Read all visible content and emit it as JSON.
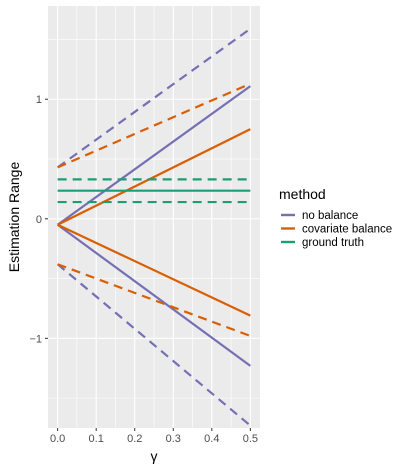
{
  "chart_data": {
    "type": "line",
    "xlabel": "γ",
    "ylabel": "Estimation Range",
    "xlim": [
      -0.025,
      0.525
    ],
    "ylim": [
      -1.75,
      1.78
    ],
    "x_ticks": [
      0.0,
      0.1,
      0.2,
      0.3,
      0.4,
      0.5
    ],
    "x_tick_labels": [
      "0.0",
      "0.1",
      "0.2",
      "0.3",
      "0.4",
      "0.5"
    ],
    "y_ticks": [
      -1,
      0,
      1
    ],
    "y_tick_labels": [
      "−1",
      "0",
      "1"
    ],
    "grid": true,
    "legend_position": "right",
    "legend_title": "method",
    "series": [
      {
        "name": "no balance",
        "color": "#7570b3",
        "style": "solid",
        "x": [
          0.0,
          0.5
        ],
        "y": [
          -0.05,
          1.11
        ]
      },
      {
        "name": "no balance",
        "color": "#7570b3",
        "style": "solid",
        "x": [
          0.0,
          0.5
        ],
        "y": [
          -0.05,
          -1.23
        ]
      },
      {
        "name": "no balance",
        "color": "#7570b3",
        "style": "dashed",
        "x": [
          0.0,
          0.5
        ],
        "y": [
          0.43,
          1.59
        ]
      },
      {
        "name": "no balance",
        "color": "#7570b3",
        "style": "dashed",
        "x": [
          0.0,
          0.5
        ],
        "y": [
          -0.38,
          -1.73
        ]
      },
      {
        "name": "covariate balance",
        "color": "#d95f02",
        "style": "solid",
        "x": [
          0.0,
          0.5
        ],
        "y": [
          -0.05,
          0.75
        ]
      },
      {
        "name": "covariate balance",
        "color": "#d95f02",
        "style": "solid",
        "x": [
          0.0,
          0.5
        ],
        "y": [
          -0.05,
          -0.81
        ]
      },
      {
        "name": "covariate balance",
        "color": "#d95f02",
        "style": "dashed",
        "x": [
          0.0,
          0.5
        ],
        "y": [
          0.43,
          1.13
        ]
      },
      {
        "name": "covariate balance",
        "color": "#d95f02",
        "style": "dashed",
        "x": [
          0.0,
          0.5
        ],
        "y": [
          -0.38,
          -0.98
        ]
      },
      {
        "name": "ground truth",
        "color": "#1b9e77",
        "style": "solid",
        "x": [
          0.0,
          0.5
        ],
        "y": [
          0.235,
          0.235
        ]
      },
      {
        "name": "ground truth",
        "color": "#1b9e77",
        "style": "dashed",
        "x": [
          0.0,
          0.5
        ],
        "y": [
          0.33,
          0.33
        ]
      },
      {
        "name": "ground truth",
        "color": "#1b9e77",
        "style": "dashed",
        "x": [
          0.0,
          0.5
        ],
        "y": [
          0.14,
          0.14
        ]
      }
    ],
    "legend": [
      {
        "label": "no balance",
        "color": "#7570b3"
      },
      {
        "label": "covariate balance",
        "color": "#d95f02"
      },
      {
        "label": "ground truth",
        "color": "#1b9e77"
      }
    ]
  }
}
